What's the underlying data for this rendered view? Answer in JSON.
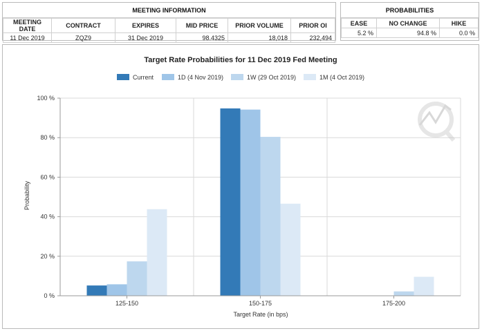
{
  "meeting": {
    "title": "MEETING INFORMATION",
    "columns": [
      "MEETING DATE",
      "CONTRACT",
      "EXPIRES",
      "MID PRICE",
      "PRIOR VOLUME",
      "PRIOR OI"
    ],
    "values": [
      "11 Dec 2019",
      "ZQZ9",
      "31 Dec 2019",
      "98.4325",
      "18,018",
      "232,494"
    ]
  },
  "probabilities": {
    "title": "PROBABILITIES",
    "columns": [
      "EASE",
      "NO CHANGE",
      "HIKE"
    ],
    "values": [
      "5.2 %",
      "94.8 %",
      "0.0 %"
    ]
  },
  "chart_data": {
    "type": "bar",
    "title": "Target Rate Probabilities for 11 Dec 2019 Fed Meeting",
    "xlabel": "Target Rate (in bps)",
    "ylabel": "Probability",
    "ylim": [
      0,
      100
    ],
    "yticks": [
      0,
      20,
      40,
      60,
      80,
      100
    ],
    "ytick_labels": [
      "0 %",
      "20 %",
      "40 %",
      "60 %",
      "80 %",
      "100 %"
    ],
    "categories": [
      "125-150",
      "150-175",
      "175-200"
    ],
    "grid": true,
    "legend": "top-center",
    "series": [
      {
        "name": "Current",
        "color": "#337ab7",
        "values": [
          5.2,
          94.8,
          0.0
        ]
      },
      {
        "name": "1D (4 Nov 2019)",
        "color": "#9fc5e8",
        "values": [
          5.8,
          94.2,
          0.0
        ]
      },
      {
        "name": "1W (29 Oct 2019)",
        "color": "#bdd7ee",
        "values": [
          17.4,
          80.4,
          2.2
        ]
      },
      {
        "name": "1M (4 Oct 2019)",
        "color": "#dce9f6",
        "values": [
          43.8,
          46.6,
          9.6
        ]
      }
    ]
  }
}
